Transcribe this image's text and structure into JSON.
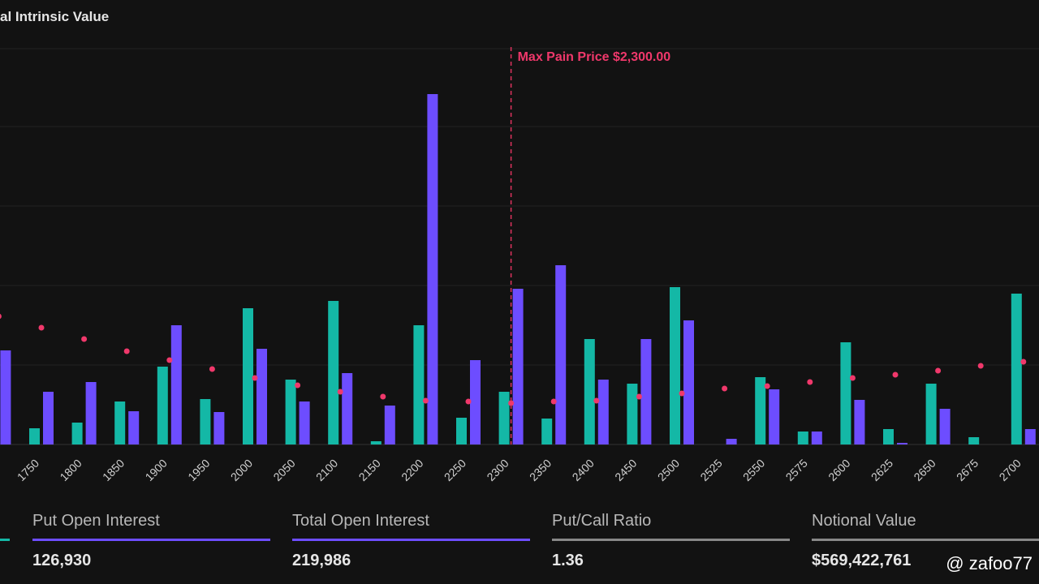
{
  "chart_data": {
    "type": "bar",
    "title": "al Intrinsic Value",
    "annotation": "Max Pain Price $2,300.00",
    "max_pain": 2300,
    "categories": [
      null,
      "1750",
      "1800",
      "1850",
      "1900",
      "1950",
      "2000",
      "2050",
      "2100",
      "2150",
      "2200",
      "2250",
      "2300",
      "2350",
      "2400",
      "2450",
      "2500",
      "2525",
      "2550",
      "2575",
      "2600",
      "2625",
      "2650",
      "2675",
      "2700"
    ],
    "series": [
      {
        "color": "#14b8a6",
        "values": [
          null,
          20,
          27,
          53,
          96,
          56,
          168,
          80,
          177,
          4,
          147,
          33,
          65,
          32,
          130,
          75,
          194,
          0,
          83,
          16,
          126,
          19,
          75,
          9,
          186
        ]
      },
      {
        "color": "#6d4dff",
        "values": [
          116,
          65,
          77,
          41,
          147,
          40,
          118,
          53,
          88,
          48,
          432,
          104,
          192,
          221,
          80,
          130,
          153,
          7,
          68,
          16,
          55,
          2,
          44,
          0,
          19
        ]
      },
      {
        "type": "scatter",
        "color": "#f0386b",
        "values": [
          158,
          144,
          130,
          115,
          104,
          93,
          82,
          73,
          65,
          59,
          54,
          53,
          51,
          53,
          54,
          59,
          63,
          69,
          72,
          77,
          82,
          86,
          91,
          97,
          102
        ]
      }
    ],
    "ylim": [
      0,
      490
    ]
  },
  "stats": [
    {
      "label": "Put Open Interest",
      "value": "126,930"
    },
    {
      "label": "Total Open Interest",
      "value": "219,986"
    },
    {
      "label": "Put/Call Ratio",
      "value": "1.36"
    },
    {
      "label": "Notional Value",
      "value": "$569,422,761"
    }
  ],
  "watermark": "@ zafoo77"
}
